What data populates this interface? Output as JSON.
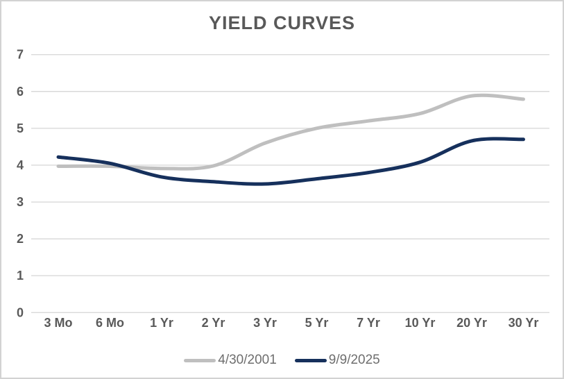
{
  "window": {
    "background_color": "#ffffff",
    "border_color": "#d2d2d2"
  },
  "chart_data": {
    "type": "line",
    "title": "YIELD CURVES",
    "categories": [
      "3 Mo",
      "6 Mo",
      "1 Yr",
      "2 Yr",
      "3 Yr",
      "5 Yr",
      "7 Yr",
      "10 Yr",
      "20 Yr",
      "30 Yr"
    ],
    "series": [
      {
        "name": "4/30/2001",
        "color": "#bfbfbf",
        "values": [
          3.97,
          3.97,
          3.91,
          3.98,
          4.6,
          5.0,
          5.2,
          5.4,
          5.88,
          5.79
        ]
      },
      {
        "name": "9/9/2025",
        "color": "#16305c",
        "values": [
          4.22,
          4.05,
          3.68,
          3.55,
          3.49,
          3.63,
          3.8,
          4.08,
          4.66,
          4.7
        ]
      }
    ],
    "xlabel": "",
    "ylabel": "",
    "ylim": [
      0,
      7
    ],
    "ytick_labels": [
      "0",
      "1",
      "2",
      "3",
      "4",
      "5",
      "6",
      "7"
    ],
    "grid": "horizontal-only",
    "smoothed_lines": true,
    "legend_position": "bottom-center"
  },
  "styles": {
    "title_color": "#595959",
    "axis_label_color": "#595959",
    "legend_text_color": "#6e6e6e",
    "gridline_color": "#d9d9d9"
  }
}
